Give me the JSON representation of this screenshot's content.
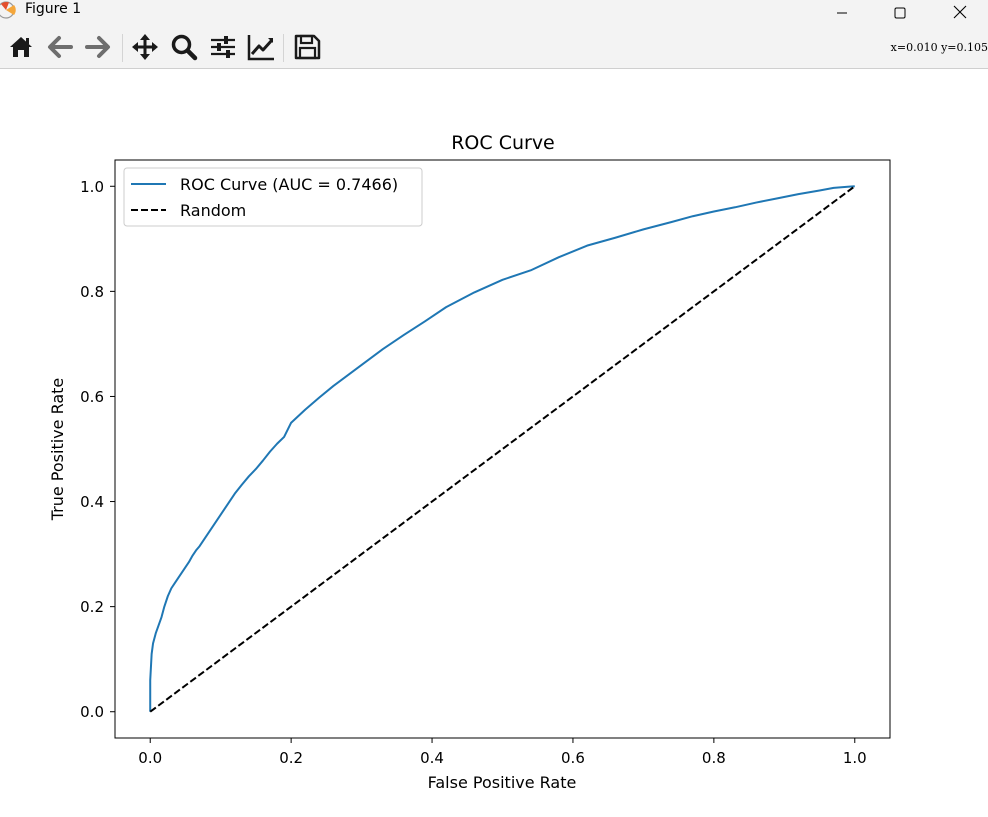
{
  "window": {
    "title": "Figure 1",
    "app_icon": "matplotlib-icon",
    "controls": [
      "minimize-icon",
      "maximize-icon",
      "close-icon"
    ]
  },
  "toolbar": {
    "tools": [
      {
        "name": "home-icon",
        "action": "Home"
      },
      {
        "name": "back-arrow-icon",
        "action": "Back"
      },
      {
        "name": "forward-arrow-icon",
        "action": "Forward"
      },
      {
        "name": "pan-icon",
        "action": "Pan"
      },
      {
        "name": "zoom-icon",
        "action": "Zoom"
      },
      {
        "name": "subplots-icon",
        "action": "Subplots"
      },
      {
        "name": "edit-curves-icon",
        "action": "Customize"
      },
      {
        "name": "save-icon",
        "action": "Save"
      }
    ],
    "coords_text": "x=0.010 y=0.105"
  },
  "chart_data": {
    "type": "line",
    "title": "ROC Curve",
    "xlabel": "False Positive Rate",
    "ylabel": "True Positive Rate",
    "xlim": [
      -0.05,
      1.05
    ],
    "ylim": [
      -0.05,
      1.05
    ],
    "xticks": [
      0.0,
      0.2,
      0.4,
      0.6,
      0.8,
      1.0
    ],
    "yticks": [
      0.0,
      0.2,
      0.4,
      0.6,
      0.8,
      1.0
    ],
    "xtick_labels": [
      "0.0",
      "0.2",
      "0.4",
      "0.6",
      "0.8",
      "1.0"
    ],
    "ytick_labels": [
      "0.0",
      "0.2",
      "0.4",
      "0.6",
      "0.8",
      "1.0"
    ],
    "grid": false,
    "legend_position": "upper-left",
    "series": [
      {
        "name": "ROC Curve (AUC = 0.7466)",
        "color": "#1f77b4",
        "style": "solid",
        "x": [
          0.0,
          0.0,
          0.002,
          0.004,
          0.008,
          0.012,
          0.016,
          0.02,
          0.025,
          0.03,
          0.035,
          0.04,
          0.045,
          0.05,
          0.055,
          0.06,
          0.065,
          0.07,
          0.075,
          0.08,
          0.09,
          0.1,
          0.11,
          0.12,
          0.13,
          0.14,
          0.15,
          0.16,
          0.17,
          0.18,
          0.19,
          0.2,
          0.22,
          0.24,
          0.26,
          0.28,
          0.3,
          0.33,
          0.36,
          0.39,
          0.42,
          0.46,
          0.5,
          0.54,
          0.58,
          0.62,
          0.66,
          0.7,
          0.74,
          0.77,
          0.8,
          0.83,
          0.86,
          0.89,
          0.92,
          0.95,
          0.97,
          0.99,
          1.0
        ],
        "y": [
          0.0,
          0.06,
          0.11,
          0.13,
          0.15,
          0.165,
          0.18,
          0.2,
          0.22,
          0.235,
          0.245,
          0.255,
          0.265,
          0.275,
          0.285,
          0.297,
          0.307,
          0.315,
          0.325,
          0.335,
          0.355,
          0.375,
          0.395,
          0.415,
          0.432,
          0.448,
          0.462,
          0.478,
          0.495,
          0.51,
          0.523,
          0.55,
          0.575,
          0.598,
          0.62,
          0.64,
          0.66,
          0.69,
          0.717,
          0.743,
          0.77,
          0.798,
          0.822,
          0.84,
          0.865,
          0.887,
          0.902,
          0.918,
          0.932,
          0.943,
          0.952,
          0.96,
          0.969,
          0.977,
          0.985,
          0.992,
          0.997,
          0.999,
          1.0
        ]
      },
      {
        "name": "Random",
        "color": "#000000",
        "style": "dashed",
        "x": [
          0.0,
          1.0
        ],
        "y": [
          0.0,
          1.0
        ]
      }
    ]
  }
}
